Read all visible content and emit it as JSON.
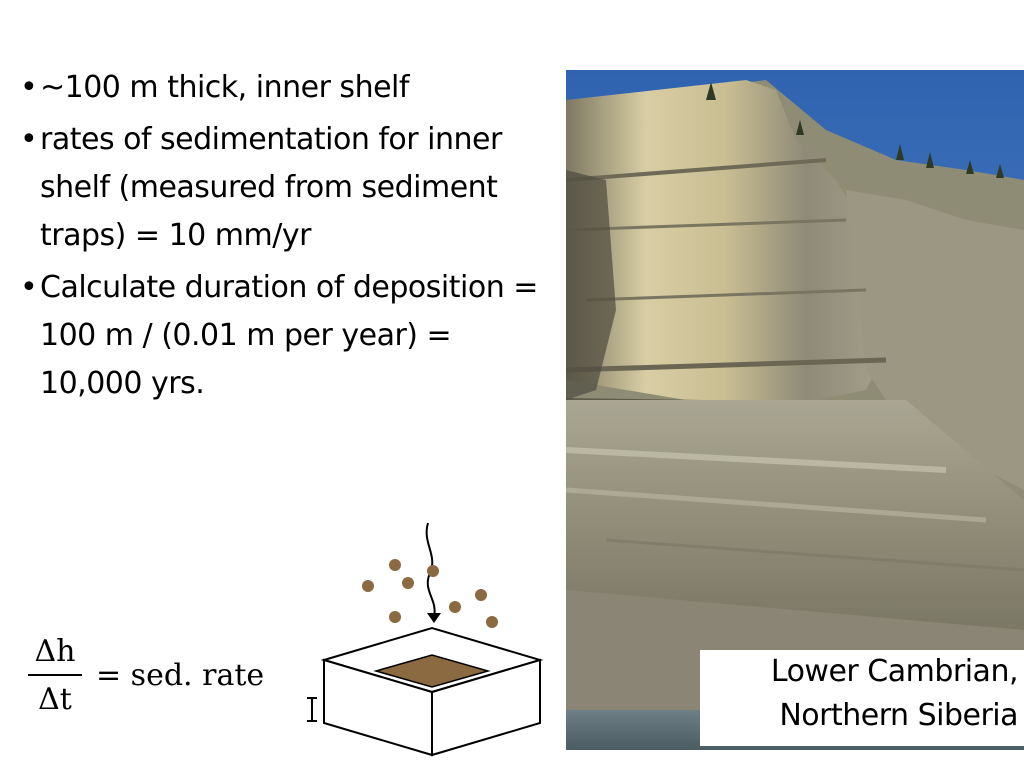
{
  "bullets": [
    {
      "symbol": "•",
      "text": " ~100 m thick, inner shelf"
    },
    {
      "symbol": "•",
      "text": "rates of sedimentation for inner shelf (measured from sediment traps) = 10 mm/yr"
    },
    {
      "symbol": "•",
      "text": "Calculate duration of deposition = 100 m / (0.01 m per year) = 10,000 yrs."
    }
  ],
  "formula": {
    "numerator": "Δh",
    "denominator": "Δt",
    "rhs": "= sed. rate"
  },
  "caption": {
    "line1": "Lower Cambrian,",
    "line2": "Northern Siberia"
  },
  "colors": {
    "sediment": "#8B6A42",
    "sky": "#3F72B8",
    "cliff": "#CFC29A"
  }
}
